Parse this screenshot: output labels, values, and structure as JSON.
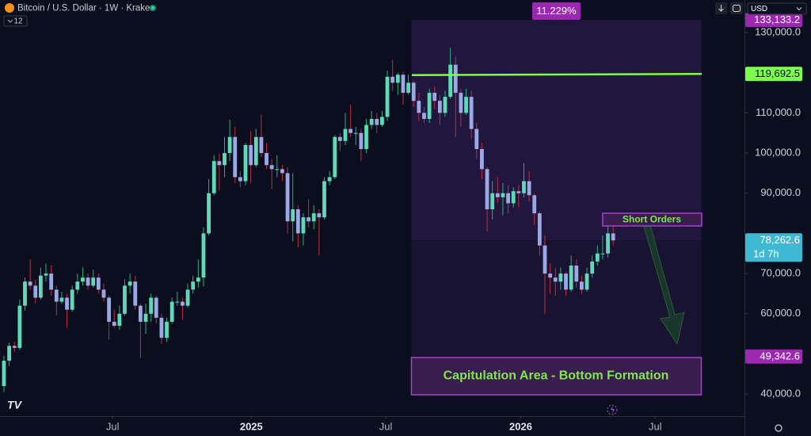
{
  "header": {
    "symbol": "Bitcoin / U.S. Dollar · 1W · Kraken",
    "badge": "12",
    "currency": "USD"
  },
  "chart_data": {
    "type": "candlestick",
    "up_color": "#5fd9b8",
    "down_color": "#9aa8e6",
    "up_wick_color": "#2fae7c",
    "down_wick_color": "#c0303c",
    "xlim": [
      -0.75,
      141
    ],
    "ylim": [
      34500,
      138100
    ],
    "grid": false,
    "xticks": [
      {
        "value": 20.7,
        "label": "Jul"
      },
      {
        "value": 47.1,
        "label": "2025"
      },
      {
        "value": 72.7,
        "label": "Jul"
      },
      {
        "value": 98.4,
        "label": "2026"
      },
      {
        "value": 124,
        "label": "Jul"
      }
    ],
    "yticks": [
      {
        "value": 130000,
        "label": "130,000.0"
      },
      {
        "value": 110000,
        "label": "110,000.0"
      },
      {
        "value": 100000,
        "label": "100,000.0"
      },
      {
        "value": 90000,
        "label": "90,000.0"
      },
      {
        "value": 70000,
        "label": "70,000.0"
      },
      {
        "value": 60000,
        "label": "60,000.0"
      },
      {
        "value": 40000,
        "label": "40,000.0"
      }
    ],
    "measure_label": "11.229%",
    "price_labels": [
      {
        "value": 133133.2,
        "label": "133,133.2",
        "color": "#9c27b0"
      },
      {
        "value": 119692.5,
        "label": "119,692.5",
        "color": "#7dff4a"
      },
      {
        "value": 78262.6,
        "label": "78,262.6",
        "sublabel": "1d 7h",
        "color": "#3fb8d4"
      },
      {
        "value": 49342.6,
        "label": "49,342.6",
        "color": "#9c27b0"
      }
    ],
    "annotations": [
      "Short Orders",
      "Capitulation Area - Bottom Formation"
    ],
    "candles": [
      [
        42000,
        49500,
        40500,
        48300
      ],
      [
        48300,
        52800,
        47000,
        52000
      ],
      [
        52000,
        53000,
        50500,
        51500
      ],
      [
        51500,
        63500,
        51000,
        62000
      ],
      [
        62000,
        69000,
        60800,
        68000
      ],
      [
        68000,
        73500,
        66000,
        67000
      ],
      [
        67000,
        68500,
        62500,
        64000
      ],
      [
        64000,
        71500,
        63500,
        69500
      ],
      [
        69500,
        72500,
        68000,
        70000
      ],
      [
        70000,
        72000,
        64500,
        66000
      ],
      [
        66000,
        67000,
        59600,
        63000
      ],
      [
        63000,
        65500,
        62500,
        64000
      ],
      [
        64000,
        65000,
        56500,
        61000
      ],
      [
        61000,
        67000,
        60500,
        66000
      ],
      [
        66000,
        70000,
        65000,
        68000
      ],
      [
        68000,
        71500,
        67000,
        69000
      ],
      [
        69000,
        70000,
        66000,
        67000
      ],
      [
        67000,
        71000,
        66500,
        69000
      ],
      [
        69000,
        70000,
        65000,
        66000
      ],
      [
        66000,
        67500,
        63000,
        64000
      ],
      [
        64000,
        64500,
        53500,
        58000
      ],
      [
        58000,
        61000,
        56500,
        57000
      ],
      [
        57000,
        62000,
        56000,
        60000
      ],
      [
        60000,
        68500,
        59500,
        67000
      ],
      [
        67000,
        70000,
        65000,
        68000
      ],
      [
        68000,
        69500,
        61000,
        62000
      ],
      [
        62000,
        62500,
        49000,
        58000
      ],
      [
        58000,
        62500,
        55000,
        60000
      ],
      [
        60000,
        65000,
        58000,
        64000
      ],
      [
        64000,
        64500,
        57500,
        59000
      ],
      [
        59000,
        60000,
        52500,
        54000
      ],
      [
        54000,
        59000,
        53000,
        58000
      ],
      [
        58000,
        64000,
        57500,
        63000
      ],
      [
        63000,
        65500,
        62000,
        63000
      ],
      [
        63000,
        64000,
        58500,
        62000
      ],
      [
        62000,
        67500,
        61500,
        66000
      ],
      [
        66000,
        69500,
        65000,
        68000
      ],
      [
        68000,
        73500,
        66500,
        69000
      ],
      [
        69000,
        81500,
        66800,
        80000
      ],
      [
        80000,
        93500,
        79500,
        90000
      ],
      [
        90000,
        99500,
        89500,
        98000
      ],
      [
        98000,
        99800,
        90800,
        97000
      ],
      [
        97000,
        104000,
        94000,
        100000
      ],
      [
        100000,
        108300,
        98000,
        104000
      ],
      [
        104000,
        106500,
        92500,
        94000
      ],
      [
        94000,
        95500,
        91500,
        93000
      ],
      [
        93000,
        102500,
        92000,
        102000
      ],
      [
        102000,
        105500,
        92500,
        97000
      ],
      [
        97000,
        106000,
        96500,
        104000
      ],
      [
        104000,
        109500,
        99000,
        100000
      ],
      [
        100000,
        102500,
        96000,
        97000
      ],
      [
        97000,
        98500,
        91000,
        96000
      ],
      [
        96000,
        99500,
        94000,
        96000
      ],
      [
        96000,
        97000,
        93000,
        95000
      ],
      [
        95000,
        96500,
        80000,
        83000
      ],
      [
        83000,
        95000,
        78000,
        86000
      ],
      [
        86000,
        87000,
        76600,
        80000
      ],
      [
        80000,
        85000,
        77000,
        84000
      ],
      [
        84000,
        88500,
        81500,
        83000
      ],
      [
        83000,
        87000,
        81000,
        85000
      ],
      [
        85000,
        86000,
        74500,
        84000
      ],
      [
        84000,
        94000,
        83500,
        93000
      ],
      [
        93000,
        95500,
        92000,
        94000
      ],
      [
        94000,
        104500,
        93500,
        104000
      ],
      [
        104000,
        105000,
        100500,
        103000
      ],
      [
        103000,
        110000,
        102000,
        106000
      ],
      [
        106000,
        112000,
        104000,
        105000
      ],
      [
        105000,
        106500,
        102000,
        105000
      ],
      [
        105000,
        106000,
        98000,
        101000
      ],
      [
        101000,
        108500,
        100000,
        107000
      ],
      [
        107000,
        110500,
        106000,
        108500
      ],
      [
        108500,
        110000,
        105000,
        107000
      ],
      [
        107000,
        110500,
        106500,
        109000
      ],
      [
        109000,
        120500,
        108000,
        119000
      ],
      [
        119000,
        123200,
        115500,
        117500
      ],
      [
        117500,
        120000,
        114500,
        119500
      ],
      [
        119500,
        120200,
        112000,
        115000
      ],
      [
        115000,
        119500,
        114500,
        117500
      ],
      [
        117500,
        118000,
        111500,
        113000
      ],
      [
        113000,
        115000,
        108000,
        110000
      ],
      [
        110000,
        111500,
        107500,
        108500
      ],
      [
        108500,
        116000,
        107500,
        115000
      ],
      [
        115000,
        116500,
        111000,
        113000
      ],
      [
        113000,
        114500,
        107000,
        110000
      ],
      [
        110000,
        115500,
        109000,
        114000
      ],
      [
        114000,
        126200,
        113500,
        122000
      ],
      [
        122000,
        124000,
        104000,
        115000
      ],
      [
        115000,
        116000,
        106500,
        110000
      ],
      [
        110000,
        116000,
        109500,
        114000
      ],
      [
        114000,
        115500,
        103500,
        106000
      ],
      [
        106000,
        107500,
        98500,
        101000
      ],
      [
        101000,
        102500,
        93500,
        96000
      ],
      [
        96000,
        96500,
        80500,
        86000
      ],
      [
        86000,
        93000,
        83500,
        90000
      ],
      [
        90000,
        94000,
        87500,
        89000
      ],
      [
        89000,
        92500,
        84500,
        90000
      ],
      [
        90000,
        92000,
        85000,
        87500
      ],
      [
        87500,
        91500,
        86500,
        90500
      ],
      [
        90500,
        92000,
        86500,
        90000
      ],
      [
        90000,
        97500,
        89000,
        93000
      ],
      [
        93000,
        95500,
        88000,
        89500
      ],
      [
        89500,
        90000,
        82000,
        85000
      ],
      [
        85000,
        85500,
        74500,
        77000
      ],
      [
        77000,
        79500,
        60000,
        70000
      ],
      [
        70000,
        72500,
        65000,
        69000
      ],
      [
        69000,
        71500,
        64500,
        68000
      ],
      [
        68000,
        71500,
        66000,
        70000
      ],
      [
        70000,
        70500,
        64500,
        66000
      ],
      [
        66000,
        74500,
        65500,
        72000
      ],
      [
        72000,
        73500,
        66500,
        68000
      ],
      [
        68000,
        69500,
        65000,
        66000
      ],
      [
        66000,
        71500,
        65500,
        70000
      ],
      [
        70000,
        74500,
        69000,
        73000
      ],
      [
        73000,
        77000,
        72000,
        75000
      ],
      [
        75000,
        79500,
        73500,
        75000
      ],
      [
        75000,
        82500,
        74000,
        80000
      ],
      [
        80000,
        82800,
        77000,
        78262.6
      ]
    ]
  }
}
